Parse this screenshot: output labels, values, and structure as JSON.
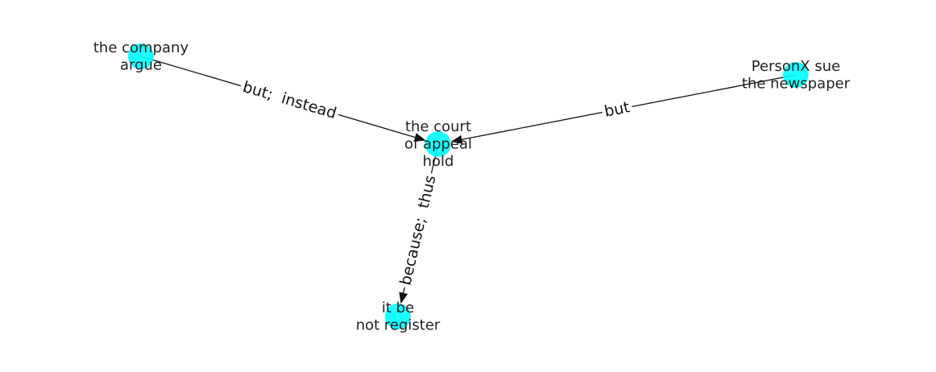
{
  "colors": {
    "node": "#00ffff",
    "edge": "#111111",
    "text": "#222222"
  },
  "nodes": [
    {
      "id": "company",
      "lines": [
        "the company",
        "argue"
      ]
    },
    {
      "id": "court",
      "lines": [
        "the court",
        "of appeal",
        "hold"
      ]
    },
    {
      "id": "personx",
      "lines": [
        "PersonX sue",
        "the newspaper"
      ]
    },
    {
      "id": "register",
      "lines": [
        "it be",
        "not register"
      ]
    }
  ],
  "edges": [
    {
      "id": "company-court",
      "source": "company",
      "target": "court",
      "label": "but;  instead"
    },
    {
      "id": "personx-court",
      "source": "personx",
      "target": "court",
      "label": "but"
    },
    {
      "id": "court-register",
      "source": "court",
      "target": "register",
      "label": "because;  thus"
    }
  ]
}
